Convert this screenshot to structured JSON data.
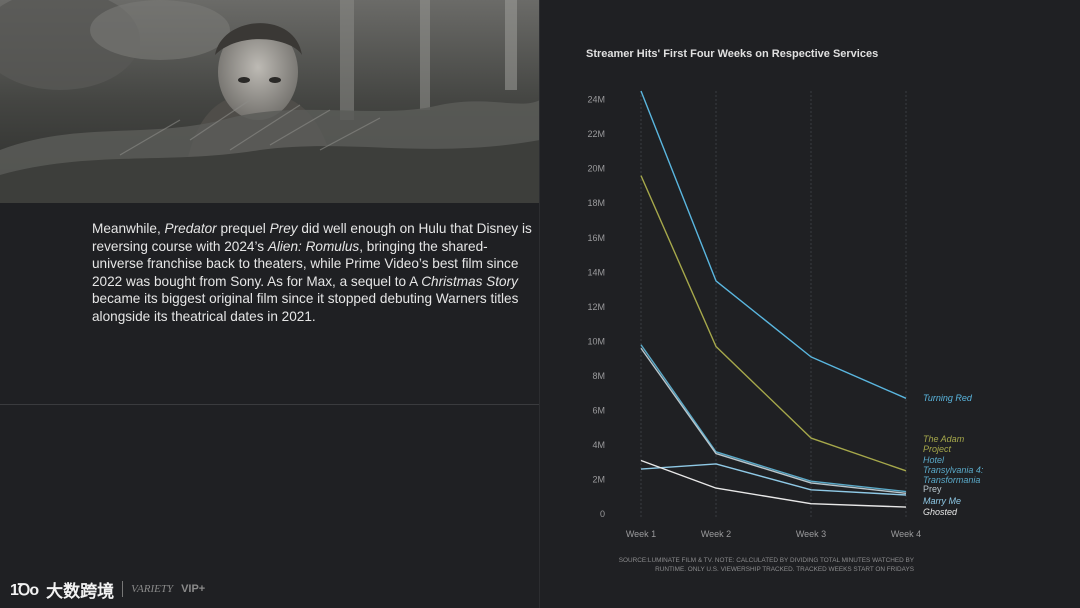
{
  "article": {
    "p1": "Meanwhile, ",
    "p2": "Predator",
    "p3": " prequel ",
    "p4": "Prey",
    "p5": " did well enough on Hulu that Disney is reversing course with 2024’s ",
    "p6": "Alien: Romulus",
    "p7": ", bringing the shared-universe franchise back to theaters, while Prime Video’s best film since 2022 was bought from Sony. As for Max, a sequel to A ",
    "p8": "Christmas Story",
    "p9": " became its biggest original film since it stopped debuting Warners titles alongside its theatrical dates in 2021."
  },
  "branding": {
    "mark": "1Ꝺo",
    "cn": "大数跨境",
    "variety": "VARIETY",
    "vip": "VIP+"
  },
  "colors": {
    "background": "#1f2023",
    "turning_red": "#5ab6df",
    "adam_project": "#a6a84b",
    "hotel_transylvania": "#5aa9c8",
    "prey": "#b9c6cc",
    "marry_me": "#8fc9e6",
    "ghosted": "#e8e8e8"
  },
  "chart_data": {
    "type": "line",
    "title": "Streamer Hits' First Four Weeks on Respective Services",
    "categories": [
      "Week 1",
      "Week 2",
      "Week 3",
      "Week 4"
    ],
    "y_ticks": [
      "0",
      "2M",
      "4M",
      "6M",
      "8M",
      "10M",
      "12M",
      "14M",
      "16M",
      "18M",
      "20M",
      "22M",
      "24M"
    ],
    "ylim": [
      0,
      24500000
    ],
    "grid": "vertical",
    "series": [
      {
        "name": "Turning Red",
        "label": [
          "Turning Red"
        ],
        "italic": true,
        "color": "#5ab6df",
        "values": [
          24500000,
          13500000,
          9100000,
          6700000
        ]
      },
      {
        "name": "The Adam Project",
        "label": [
          "The Adam",
          "Project"
        ],
        "italic": true,
        "color": "#a6a84b",
        "values": [
          19600000,
          9700000,
          4400000,
          2500000
        ]
      },
      {
        "name": "Hotel Transylvania 4: Transformania",
        "label": [
          "Hotel",
          "Transylvania 4:",
          "Transformania"
        ],
        "italic": true,
        "color": "#5aa9c8",
        "values": [
          9800000,
          3600000,
          1900000,
          1300000
        ]
      },
      {
        "name": "Prey",
        "label": [
          "Prey"
        ],
        "italic": false,
        "color": "#b9c6cc",
        "values": [
          9600000,
          3500000,
          1800000,
          1200000
        ]
      },
      {
        "name": "Marry Me",
        "label": [
          "Marry Me"
        ],
        "italic": true,
        "color": "#8fc9e6",
        "values": [
          2600000,
          2900000,
          1400000,
          1100000
        ]
      },
      {
        "name": "Ghosted",
        "label": [
          "Ghosted"
        ],
        "italic": true,
        "color": "#e8e8e8",
        "values": [
          3100000,
          1500000,
          600000,
          400000
        ]
      }
    ],
    "source": "SOURCE:LUMINATE FILM & TV. NOTE: CALCULATED BY DIVIDING TOTAL MINUTES WATCHED BY RUNTIME. ONLY U.S. VIEWERSHIP TRACKED. TRACKED WEEKS START ON FRIDAYS"
  }
}
